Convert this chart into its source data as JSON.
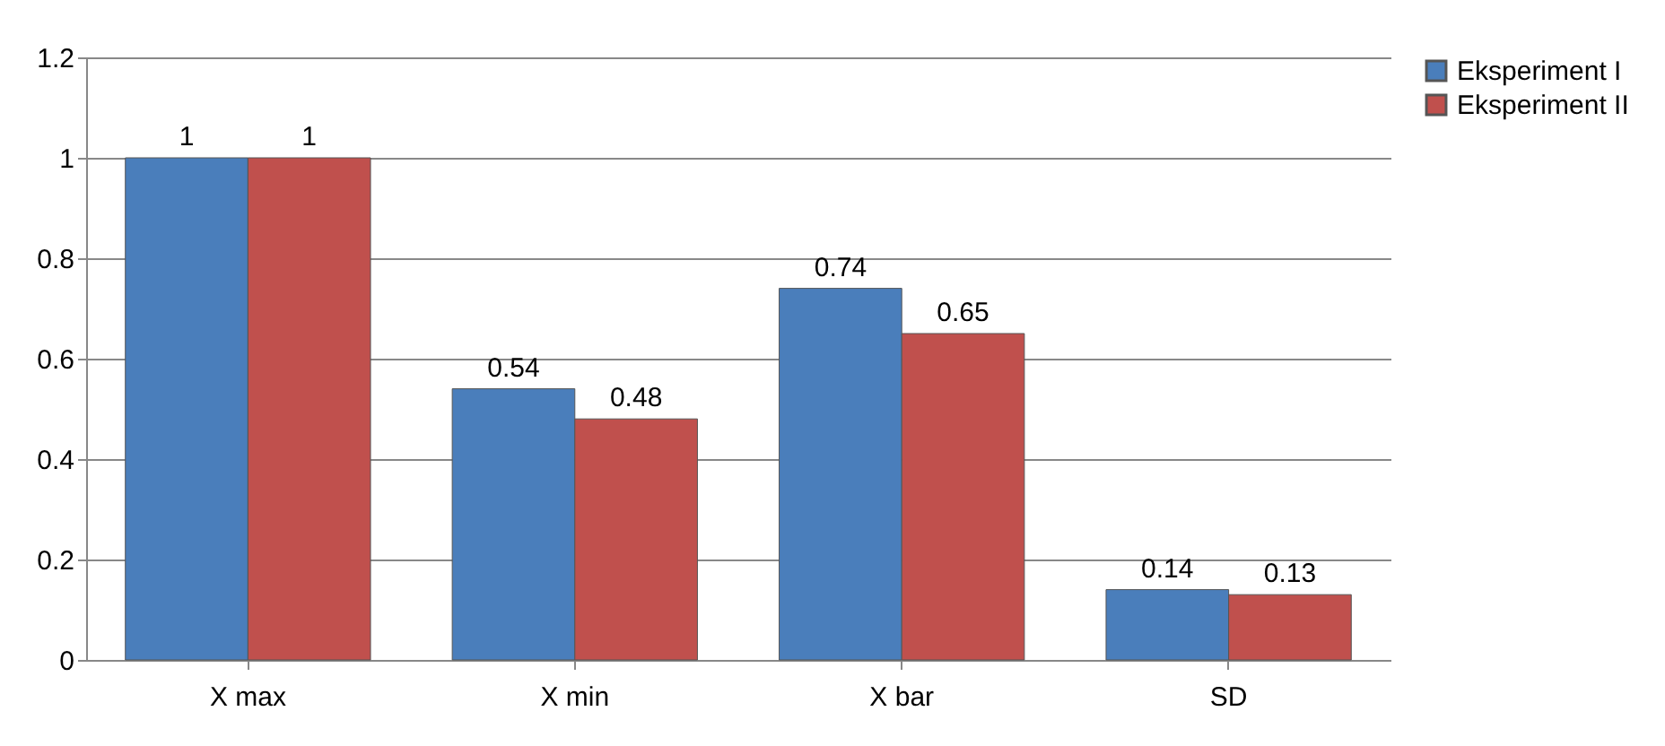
{
  "chart_data": {
    "type": "bar",
    "categories": [
      "X max",
      "X min",
      "X bar",
      "SD"
    ],
    "series": [
      {
        "name": "Eksperiment I",
        "color": "#4a7ebb",
        "values": [
          1,
          0.54,
          0.74,
          0.14
        ]
      },
      {
        "name": "Eksperiment II",
        "color": "#c0504d",
        "values": [
          1,
          0.48,
          0.65,
          0.13
        ]
      }
    ],
    "ylim": [
      0,
      1.2
    ],
    "yticks": [
      0,
      0.2,
      0.4,
      0.6,
      0.8,
      1,
      1.2
    ],
    "grid": "y",
    "legend": "right",
    "data_labels": true
  }
}
